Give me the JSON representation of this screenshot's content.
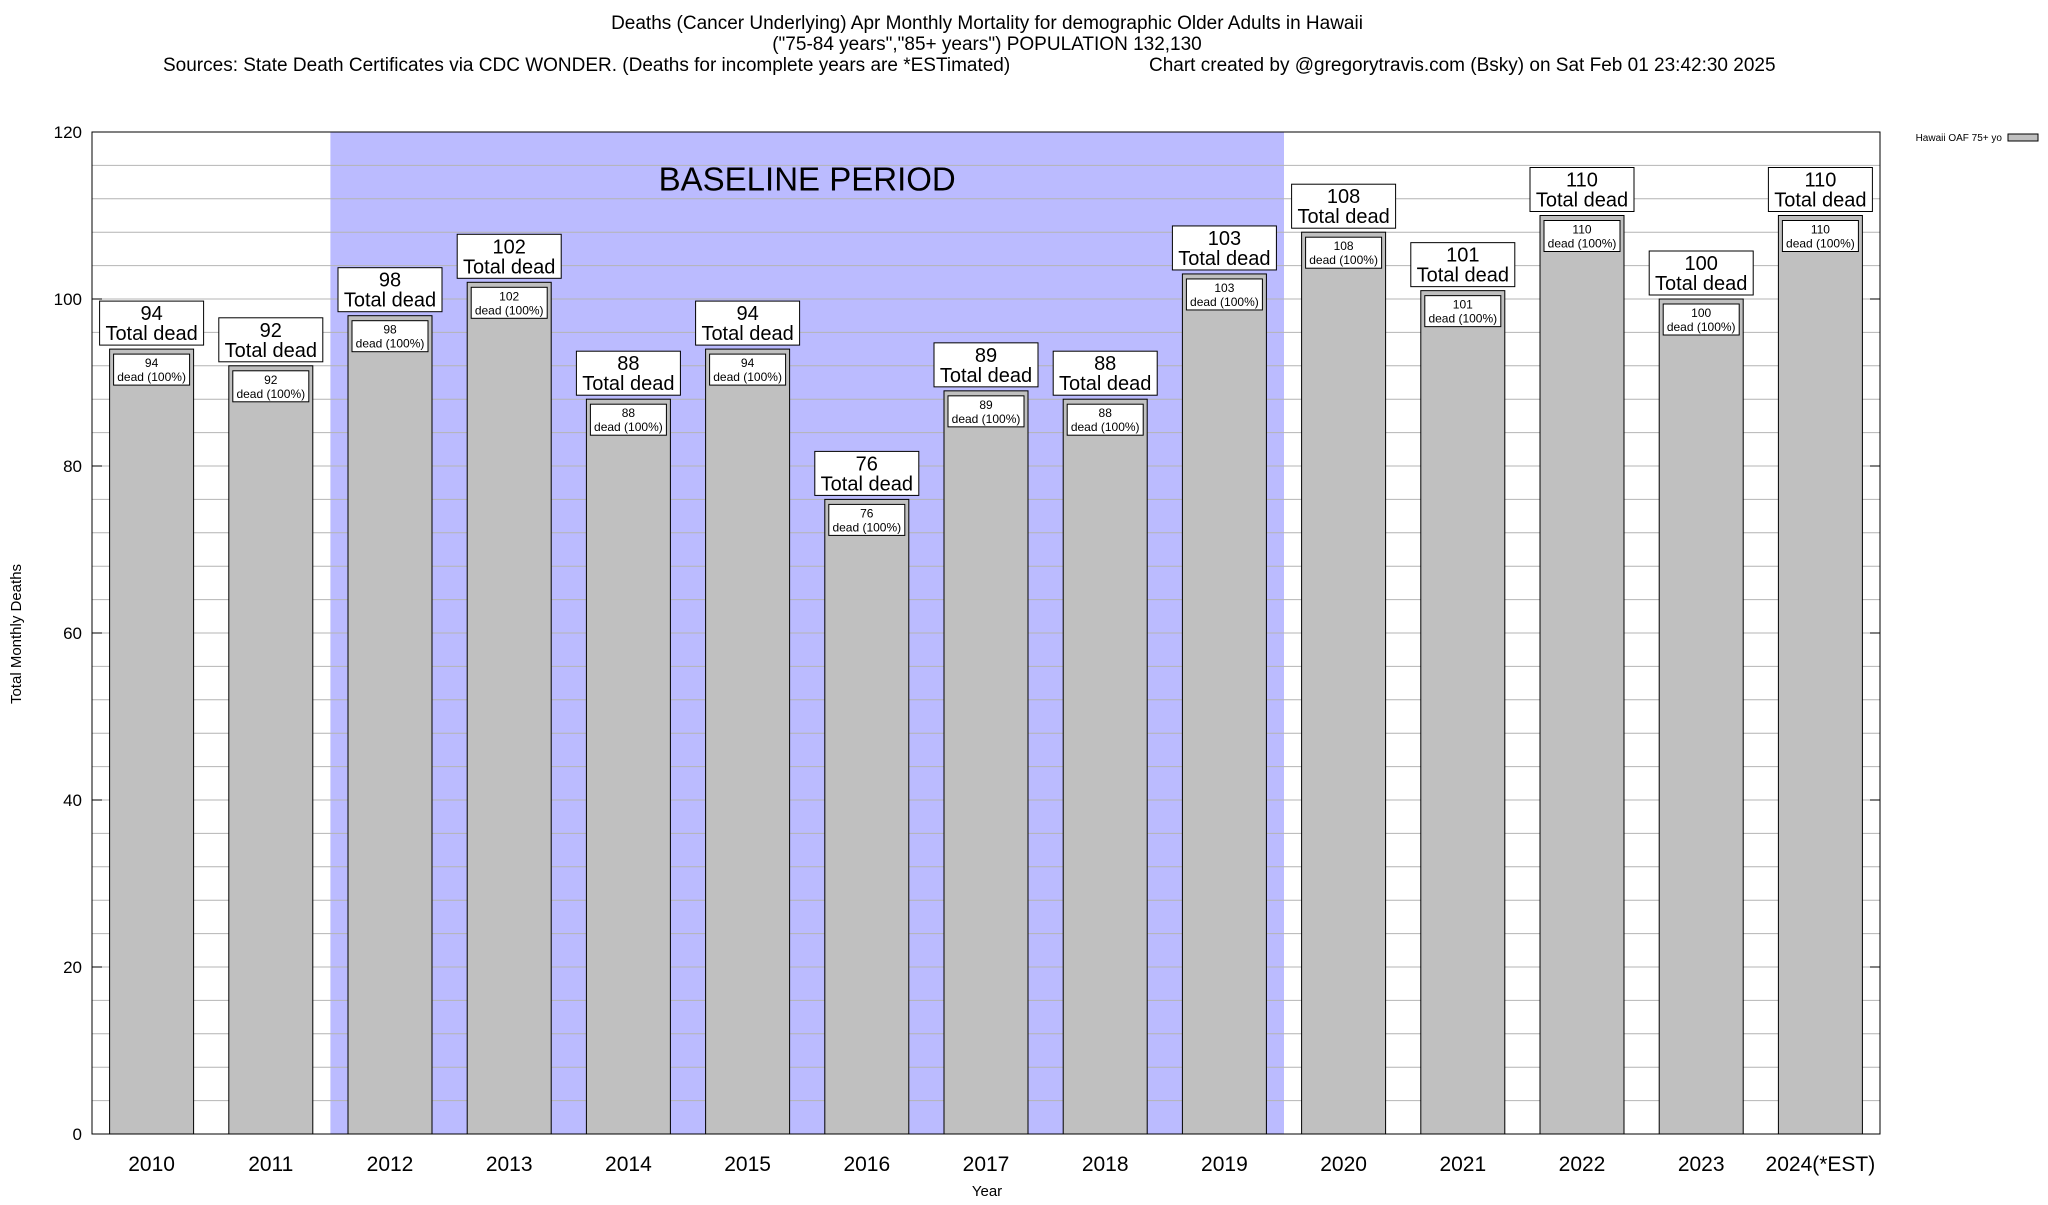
{
  "chart_data": {
    "type": "bar",
    "title_lines": [
      "Deaths (Cancer Underlying) Apr Monthly Mortality for demographic Older Adults in Hawaii",
      "(\"75-84 years\",\"85+ years\") POPULATION 132,130"
    ],
    "sources_text": "Sources: State Death Certificates via CDC WONDER. (Deaths for incomplete years are *ESTimated)",
    "credit_text": "Chart created by @gregorytravis.com (Bsky) on Sat Feb 01 23:42:30 2025",
    "xlabel": "Year",
    "ylabel": "Total Monthly Deaths",
    "ylim": [
      0,
      120
    ],
    "y_ticks": [
      0,
      20,
      40,
      60,
      80,
      100,
      120
    ],
    "y_minor_step": 4,
    "grid": true,
    "categories": [
      "2010",
      "2011",
      "2012",
      "2013",
      "2014",
      "2015",
      "2016",
      "2017",
      "2018",
      "2019",
      "2020",
      "2021",
      "2022",
      "2023",
      "2024(*EST)"
    ],
    "series": [
      {
        "name": "Hawaii OAF 75+ yo",
        "values": [
          94,
          92,
          98,
          102,
          88,
          94,
          76,
          89,
          88,
          103,
          108,
          101,
          110,
          100,
          110
        ]
      }
    ],
    "total_label": "Total dead",
    "inner_label": "dead (100%)",
    "baseline": {
      "label": "BASELINE PERIOD",
      "start_category": "2012",
      "end_category": "2019"
    },
    "legend_position": "top-right",
    "colors": {
      "bar_fill": "#c0c0c0",
      "bar_stroke": "#000000",
      "baseline_fill": "#bbbbff",
      "grid": "#b4b4b4",
      "background": "#ffffff"
    }
  }
}
